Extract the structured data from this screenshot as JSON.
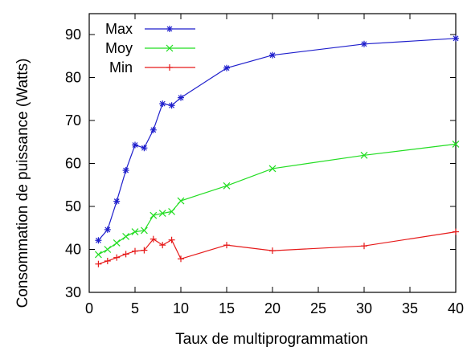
{
  "chart_data": {
    "type": "line",
    "title": "",
    "xlabel": "Taux de multiprogrammation",
    "ylabel": "Consommation de puissance (Watts)",
    "xlim": [
      0,
      40
    ],
    "ylim": [
      30,
      95
    ],
    "xticks": [
      0,
      5,
      10,
      15,
      20,
      25,
      30,
      35,
      40
    ],
    "yticks": [
      30,
      40,
      50,
      60,
      70,
      80,
      90
    ],
    "grid": false,
    "legend_position": "top-left",
    "series": [
      {
        "name": "Max",
        "color": "#1f1fcc",
        "marker": "asterisk",
        "x": [
          1,
          2,
          3,
          4,
          5,
          6,
          7,
          8,
          9,
          10,
          15,
          20,
          30,
          40
        ],
        "y": [
          42.1,
          44.6,
          51.2,
          58.4,
          64.3,
          63.6,
          67.8,
          73.9,
          73.5,
          75.3,
          82.2,
          85.2,
          87.8,
          89.1
        ]
      },
      {
        "name": "Moy",
        "color": "#22dd22",
        "marker": "x",
        "x": [
          1,
          2,
          3,
          4,
          5,
          6,
          7,
          8,
          9,
          10,
          15,
          20,
          30,
          40
        ],
        "y": [
          38.8,
          40.0,
          41.5,
          43.0,
          44.1,
          44.4,
          47.9,
          48.4,
          48.8,
          51.3,
          54.8,
          58.8,
          61.9,
          64.5
        ]
      },
      {
        "name": "Min",
        "color": "#e61a1a",
        "marker": "plus",
        "x": [
          1,
          2,
          3,
          4,
          5,
          6,
          7,
          8,
          9,
          10,
          15,
          20,
          30,
          40
        ],
        "y": [
          36.6,
          37.3,
          38.1,
          38.9,
          39.6,
          39.8,
          42.4,
          41.0,
          42.2,
          37.8,
          41.0,
          39.7,
          40.8,
          44.1
        ]
      }
    ]
  }
}
